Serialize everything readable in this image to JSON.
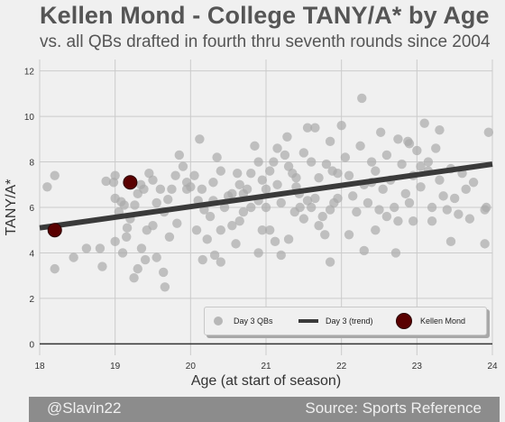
{
  "header": {
    "title": "Kellen Mond - College TANY/A* by Age",
    "subtitle": "vs. all QBs drafted in fourth thru seventh rounds since 2004"
  },
  "footer": {
    "left": "@Slavin22",
    "right": "Source: Sports Reference"
  },
  "colors": {
    "background": "#f0f0f0",
    "grid": "#cbcbcb",
    "day3_points": "#a9a9a9",
    "trend_line": "#3a3a3a",
    "highlight": "#5a0000",
    "footer_band": "#8c8c8c"
  },
  "chart_data": {
    "type": "scatter",
    "xlabel": "Age (at start of season)",
    "ylabel": "TANY/A*",
    "xlim": [
      18,
      24
    ],
    "ylim": [
      -0.5,
      12.5
    ],
    "xticks": [
      18,
      19,
      20,
      21,
      22,
      23,
      24
    ],
    "yticks": [
      0,
      2,
      4,
      6,
      8,
      10,
      12
    ],
    "grid": true,
    "legend": {
      "placement": "lower-right",
      "entries": [
        "Day 3 QBs",
        "Day 3 (trend)",
        "Kellen Mond"
      ]
    },
    "series": [
      {
        "name": "Day 3 QBs",
        "kind": "scatter",
        "points": [
          [
            18.1,
            6.9
          ],
          [
            18.2,
            7.4
          ],
          [
            18.2,
            3.3
          ],
          [
            18.45,
            3.8
          ],
          [
            18.62,
            4.2
          ],
          [
            18.8,
            4.2
          ],
          [
            18.83,
            3.4
          ],
          [
            18.88,
            7.15
          ],
          [
            19.0,
            7.4
          ],
          [
            19.0,
            6.4
          ],
          [
            18.98,
            7.1
          ],
          [
            19.05,
            5.8
          ],
          [
            19.08,
            6.25
          ],
          [
            19.12,
            6.1
          ],
          [
            19.16,
            5.1
          ],
          [
            19.2,
            5.5
          ],
          [
            19.26,
            6.1
          ],
          [
            19.3,
            6.6
          ],
          [
            19.34,
            7.0
          ],
          [
            19.38,
            6.8
          ],
          [
            19.45,
            7.5
          ],
          [
            19.5,
            7.2
          ],
          [
            19.55,
            6.2
          ],
          [
            19.6,
            6.8
          ],
          [
            19.65,
            5.8
          ],
          [
            19.7,
            6.35
          ],
          [
            19.75,
            6.8
          ],
          [
            19.8,
            7.4
          ],
          [
            19.85,
            8.3
          ],
          [
            19.9,
            7.8
          ],
          [
            19.95,
            7.1
          ],
          [
            20.0,
            6.9
          ],
          [
            19.42,
            5.0
          ],
          [
            19.5,
            5.2
          ],
          [
            19.35,
            4.2
          ],
          [
            19.4,
            3.7
          ],
          [
            19.25,
            2.9
          ],
          [
            19.3,
            3.3
          ],
          [
            19.55,
            3.8
          ],
          [
            19.66,
            2.5
          ],
          [
            19.64,
            3.15
          ],
          [
            19.72,
            4.7
          ],
          [
            19.82,
            5.3
          ],
          [
            19.15,
            4.7
          ],
          [
            19.1,
            4.0
          ],
          [
            19.0,
            4.5
          ],
          [
            20.05,
            7.4
          ],
          [
            20.1,
            6.3
          ],
          [
            20.15,
            6.8
          ],
          [
            20.18,
            5.9
          ],
          [
            20.22,
            4.6
          ],
          [
            20.26,
            5.6
          ],
          [
            20.3,
            7.1
          ],
          [
            20.35,
            8.2
          ],
          [
            20.4,
            5.0
          ],
          [
            20.45,
            6.0
          ],
          [
            20.5,
            6.5
          ],
          [
            20.55,
            5.2
          ],
          [
            20.6,
            4.4
          ],
          [
            20.65,
            7.0
          ],
          [
            20.7,
            5.8
          ],
          [
            20.75,
            6.8
          ],
          [
            20.8,
            7.5
          ],
          [
            20.85,
            8.7
          ],
          [
            20.9,
            6.3
          ],
          [
            20.95,
            5.0
          ],
          [
            20.12,
            9.0
          ],
          [
            20.08,
            5.0
          ],
          [
            20.16,
            3.7
          ],
          [
            20.32,
            3.9
          ],
          [
            20.4,
            3.6
          ],
          [
            20.55,
            6.6
          ],
          [
            20.62,
            7.5
          ],
          [
            20.9,
            4.0
          ],
          [
            20.95,
            7.2
          ],
          [
            21.0,
            6.0
          ],
          [
            21.05,
            7.6
          ],
          [
            21.1,
            8.0
          ],
          [
            21.15,
            7.0
          ],
          [
            21.2,
            6.2
          ],
          [
            21.25,
            8.3
          ],
          [
            21.3,
            7.8
          ],
          [
            21.35,
            7.5
          ],
          [
            21.4,
            6.9
          ],
          [
            21.45,
            6.0
          ],
          [
            21.5,
            5.5
          ],
          [
            21.55,
            9.5
          ],
          [
            21.6,
            8.0
          ],
          [
            21.65,
            6.4
          ],
          [
            21.7,
            7.3
          ],
          [
            21.75,
            5.6
          ],
          [
            21.8,
            7.9
          ],
          [
            21.85,
            8.9
          ],
          [
            21.9,
            6.2
          ],
          [
            21.95,
            7.5
          ],
          [
            21.05,
            5.0
          ],
          [
            21.12,
            4.5
          ],
          [
            21.2,
            3.9
          ],
          [
            21.3,
            4.6
          ],
          [
            21.38,
            5.8
          ],
          [
            21.44,
            6.6
          ],
          [
            21.5,
            8.4
          ],
          [
            21.6,
            6.0
          ],
          [
            21.7,
            5.2
          ],
          [
            21.78,
            4.8
          ],
          [
            21.85,
            3.6
          ],
          [
            21.88,
            7.6
          ],
          [
            21.95,
            6.4
          ],
          [
            22.0,
            9.6
          ],
          [
            22.05,
            8.2
          ],
          [
            22.1,
            7.4
          ],
          [
            22.15,
            6.5
          ],
          [
            22.2,
            5.8
          ],
          [
            22.25,
            8.7
          ],
          [
            22.3,
            7.0
          ],
          [
            22.35,
            6.2
          ],
          [
            22.4,
            8.0
          ],
          [
            22.45,
            7.6
          ],
          [
            22.5,
            5.9
          ],
          [
            22.55,
            6.8
          ],
          [
            22.6,
            8.3
          ],
          [
            22.65,
            7.2
          ],
          [
            22.7,
            6.0
          ],
          [
            22.75,
            5.4
          ],
          [
            22.8,
            7.9
          ],
          [
            22.85,
            6.6
          ],
          [
            22.9,
            8.8
          ],
          [
            22.95,
            7.4
          ],
          [
            22.27,
            10.8
          ],
          [
            22.1,
            4.8
          ],
          [
            22.3,
            4.1
          ],
          [
            22.45,
            5.0
          ],
          [
            22.6,
            5.6
          ],
          [
            22.72,
            4.0
          ],
          [
            22.9,
            6.2
          ],
          [
            22.95,
            5.4
          ],
          [
            23.0,
            8.5
          ],
          [
            23.05,
            7.8
          ],
          [
            23.1,
            9.7
          ],
          [
            23.15,
            8.0
          ],
          [
            23.2,
            6.0
          ],
          [
            23.25,
            8.6
          ],
          [
            23.3,
            7.2
          ],
          [
            23.35,
            6.5
          ],
          [
            23.4,
            5.9
          ],
          [
            23.45,
            7.7
          ],
          [
            23.5,
            6.4
          ],
          [
            23.55,
            5.7
          ],
          [
            23.6,
            7.5
          ],
          [
            23.65,
            6.8
          ],
          [
            23.7,
            5.5
          ],
          [
            23.75,
            7.1
          ],
          [
            23.3,
            9.4
          ],
          [
            23.05,
            6.9
          ],
          [
            23.15,
            7.6
          ],
          [
            23.2,
            5.4
          ],
          [
            23.45,
            4.5
          ],
          [
            23.9,
            5.9
          ],
          [
            23.92,
            6.0
          ],
          [
            23.95,
            9.3
          ],
          [
            23.9,
            4.4
          ],
          [
            21.15,
            8.6
          ],
          [
            21.28,
            9.1
          ],
          [
            20.9,
            8.0
          ],
          [
            22.52,
            9.3
          ],
          [
            21.65,
            9.5
          ],
          [
            22.75,
            9.0
          ],
          [
            22.88,
            8.9
          ],
          [
            20.7,
            6.6
          ],
          [
            21.0,
            6.8
          ],
          [
            21.4,
            7.3
          ],
          [
            20.4,
            7.6
          ],
          [
            21.85,
            5.9
          ],
          [
            22.4,
            7.1
          ],
          [
            20.65,
            5.4
          ],
          [
            20.3,
            6.3
          ],
          [
            21.55,
            6.3
          ],
          [
            20.8,
            6.0
          ],
          [
            19.95,
            6.8
          ]
        ]
      },
      {
        "name": "Day 3 (trend)",
        "kind": "line",
        "x": [
          18.0,
          24.0
        ],
        "y": [
          5.1,
          7.9
        ]
      },
      {
        "name": "Kellen Mond",
        "kind": "scatter",
        "points": [
          [
            18.2,
            5.0
          ],
          [
            19.2,
            7.1
          ]
        ]
      }
    ]
  }
}
